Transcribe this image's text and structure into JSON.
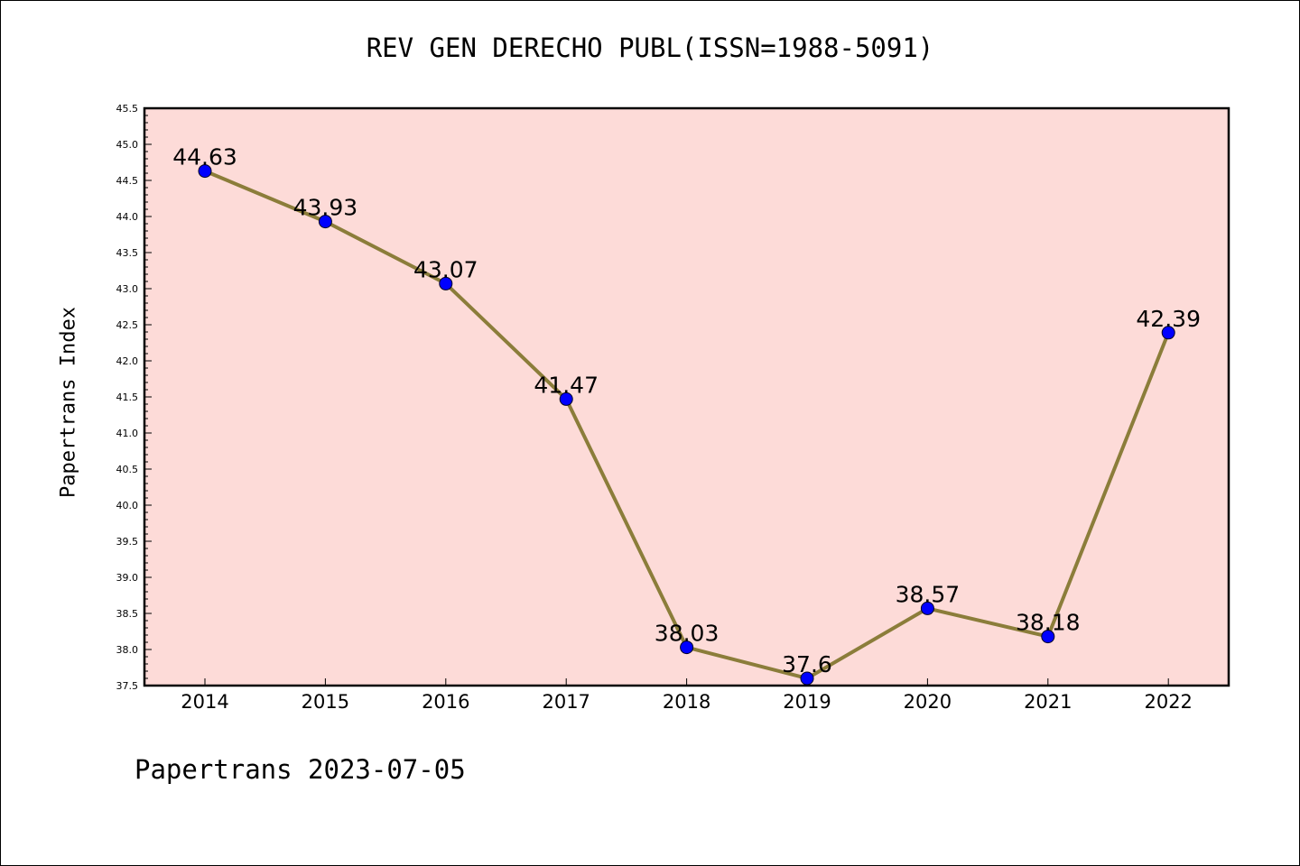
{
  "chart_data": {
    "type": "line",
    "title": "REV GEN DERECHO PUBL(ISSN=1988-5091)",
    "xlabel": "",
    "ylabel": "Papertrans Index",
    "categories": [
      "2014",
      "2015",
      "2016",
      "2017",
      "2018",
      "2019",
      "2020",
      "2021",
      "2022"
    ],
    "series": [
      {
        "name": "Papertrans Index",
        "values": [
          44.63,
          43.93,
          43.07,
          41.47,
          38.03,
          37.6,
          38.57,
          38.18,
          42.39
        ],
        "labels": [
          "44.63",
          "43.93",
          "43.07",
          "41.47",
          "38.03",
          "37.6",
          "38.57",
          "38.18",
          "42.39"
        ]
      }
    ],
    "ylim": [
      37.5,
      45.5
    ],
    "yticks": [
      "37.5",
      "38.0",
      "38.5",
      "39.0",
      "39.5",
      "40.0",
      "40.5",
      "41.0",
      "41.5",
      "42.0",
      "42.5",
      "43.0",
      "43.5",
      "44.0",
      "44.5",
      "45.0",
      "45.5"
    ],
    "grid": false,
    "legend": "none"
  },
  "footer": "Papertrans 2023-07-05",
  "colors": {
    "plot_background": "#fddbd8",
    "line": "#8b7d3a",
    "marker": "#0000ff",
    "axis": "#000000"
  }
}
